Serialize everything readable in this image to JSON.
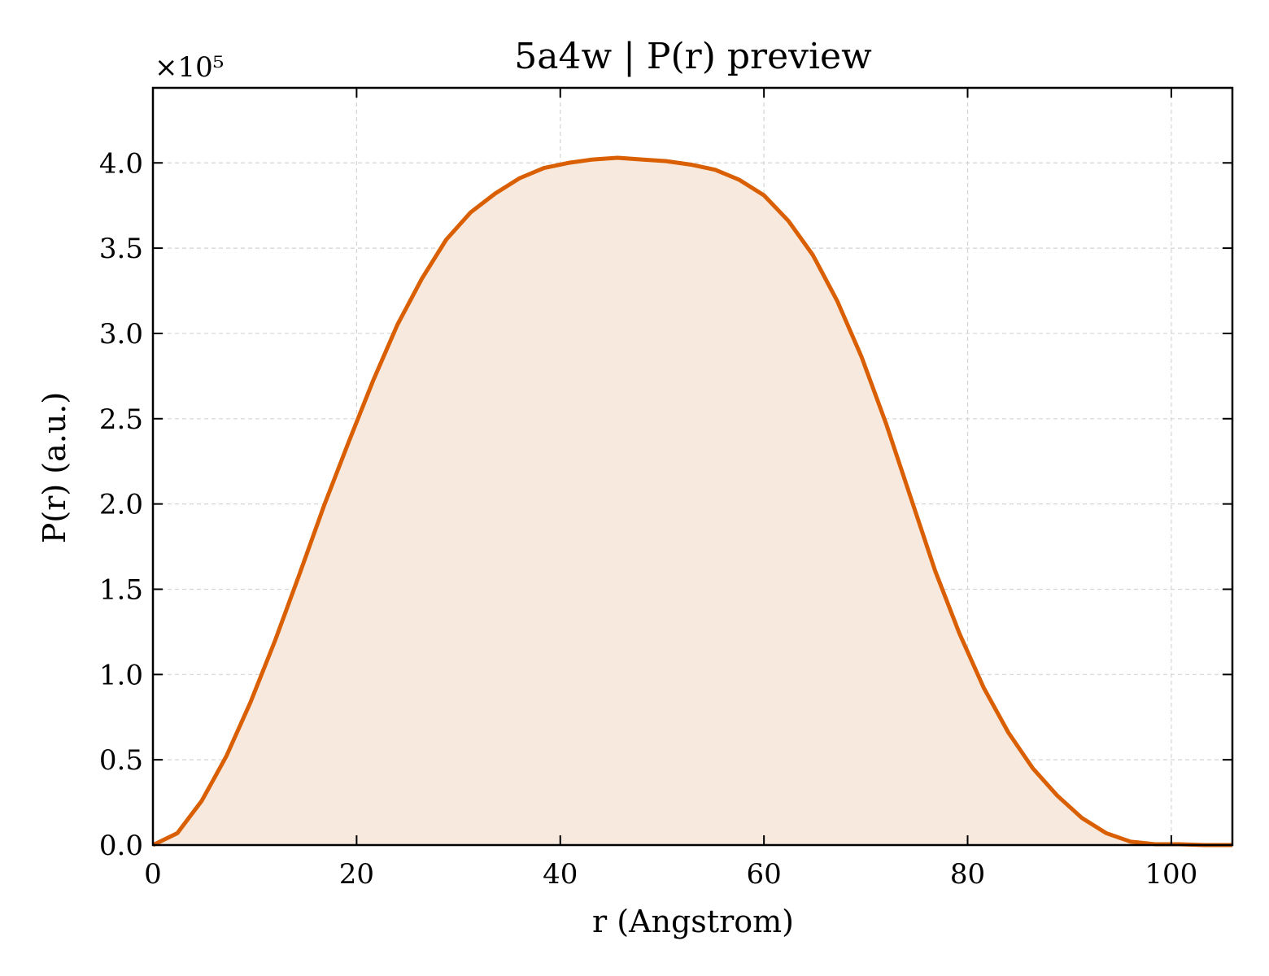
{
  "chart_data": {
    "type": "area",
    "title": "5a4w | P(r) preview",
    "xlabel": "r (Angstrom)",
    "ylabel": "P(r) (a.u.)",
    "y_offset_label": "×10⁵",
    "xlim": [
      0,
      106
    ],
    "ylim": [
      0,
      4.44
    ],
    "y_scale_factor": 100000,
    "grid": true,
    "line_color": "#d95f02",
    "fill_color": "#f7e9dd",
    "x_ticks": [
      0,
      20,
      40,
      60,
      80,
      100
    ],
    "x_tick_labels": [
      "0",
      "20",
      "40",
      "60",
      "80",
      "100"
    ],
    "y_ticks": [
      0,
      0.5,
      1.0,
      1.5,
      2.0,
      2.5,
      3.0,
      3.5,
      4.0
    ],
    "y_tick_labels": [
      "0.0",
      "0.5",
      "1.0",
      "1.5",
      "2.0",
      "2.5",
      "3.0",
      "3.5",
      "4.0"
    ],
    "series": [
      {
        "x": [
          0,
          2.4,
          4.8,
          7.2,
          9.6,
          12.0,
          14.4,
          16.8,
          19.2,
          21.6,
          24.0,
          26.4,
          28.8,
          31.2,
          33.6,
          36.0,
          38.4,
          40.8,
          43.2,
          45.6,
          48.0,
          50.4,
          52.8,
          55.2,
          57.6,
          60.0,
          62.4,
          64.8,
          67.2,
          69.6,
          72.0,
          74.4,
          76.8,
          79.2,
          81.6,
          84.0,
          86.4,
          88.8,
          91.2,
          93.6,
          96.0,
          98.4,
          100.8,
          103.2,
          106.0
        ],
        "y": [
          0.0,
          0.07,
          0.26,
          0.52,
          0.84,
          1.2,
          1.59,
          1.99,
          2.36,
          2.72,
          3.05,
          3.32,
          3.55,
          3.71,
          3.82,
          3.91,
          3.97,
          4.0,
          4.02,
          4.03,
          4.02,
          4.01,
          3.99,
          3.96,
          3.9,
          3.81,
          3.66,
          3.46,
          3.19,
          2.86,
          2.47,
          2.04,
          1.61,
          1.24,
          0.92,
          0.66,
          0.45,
          0.29,
          0.16,
          0.07,
          0.02,
          0.005,
          0.005,
          0.0,
          0.0
        ]
      }
    ]
  }
}
